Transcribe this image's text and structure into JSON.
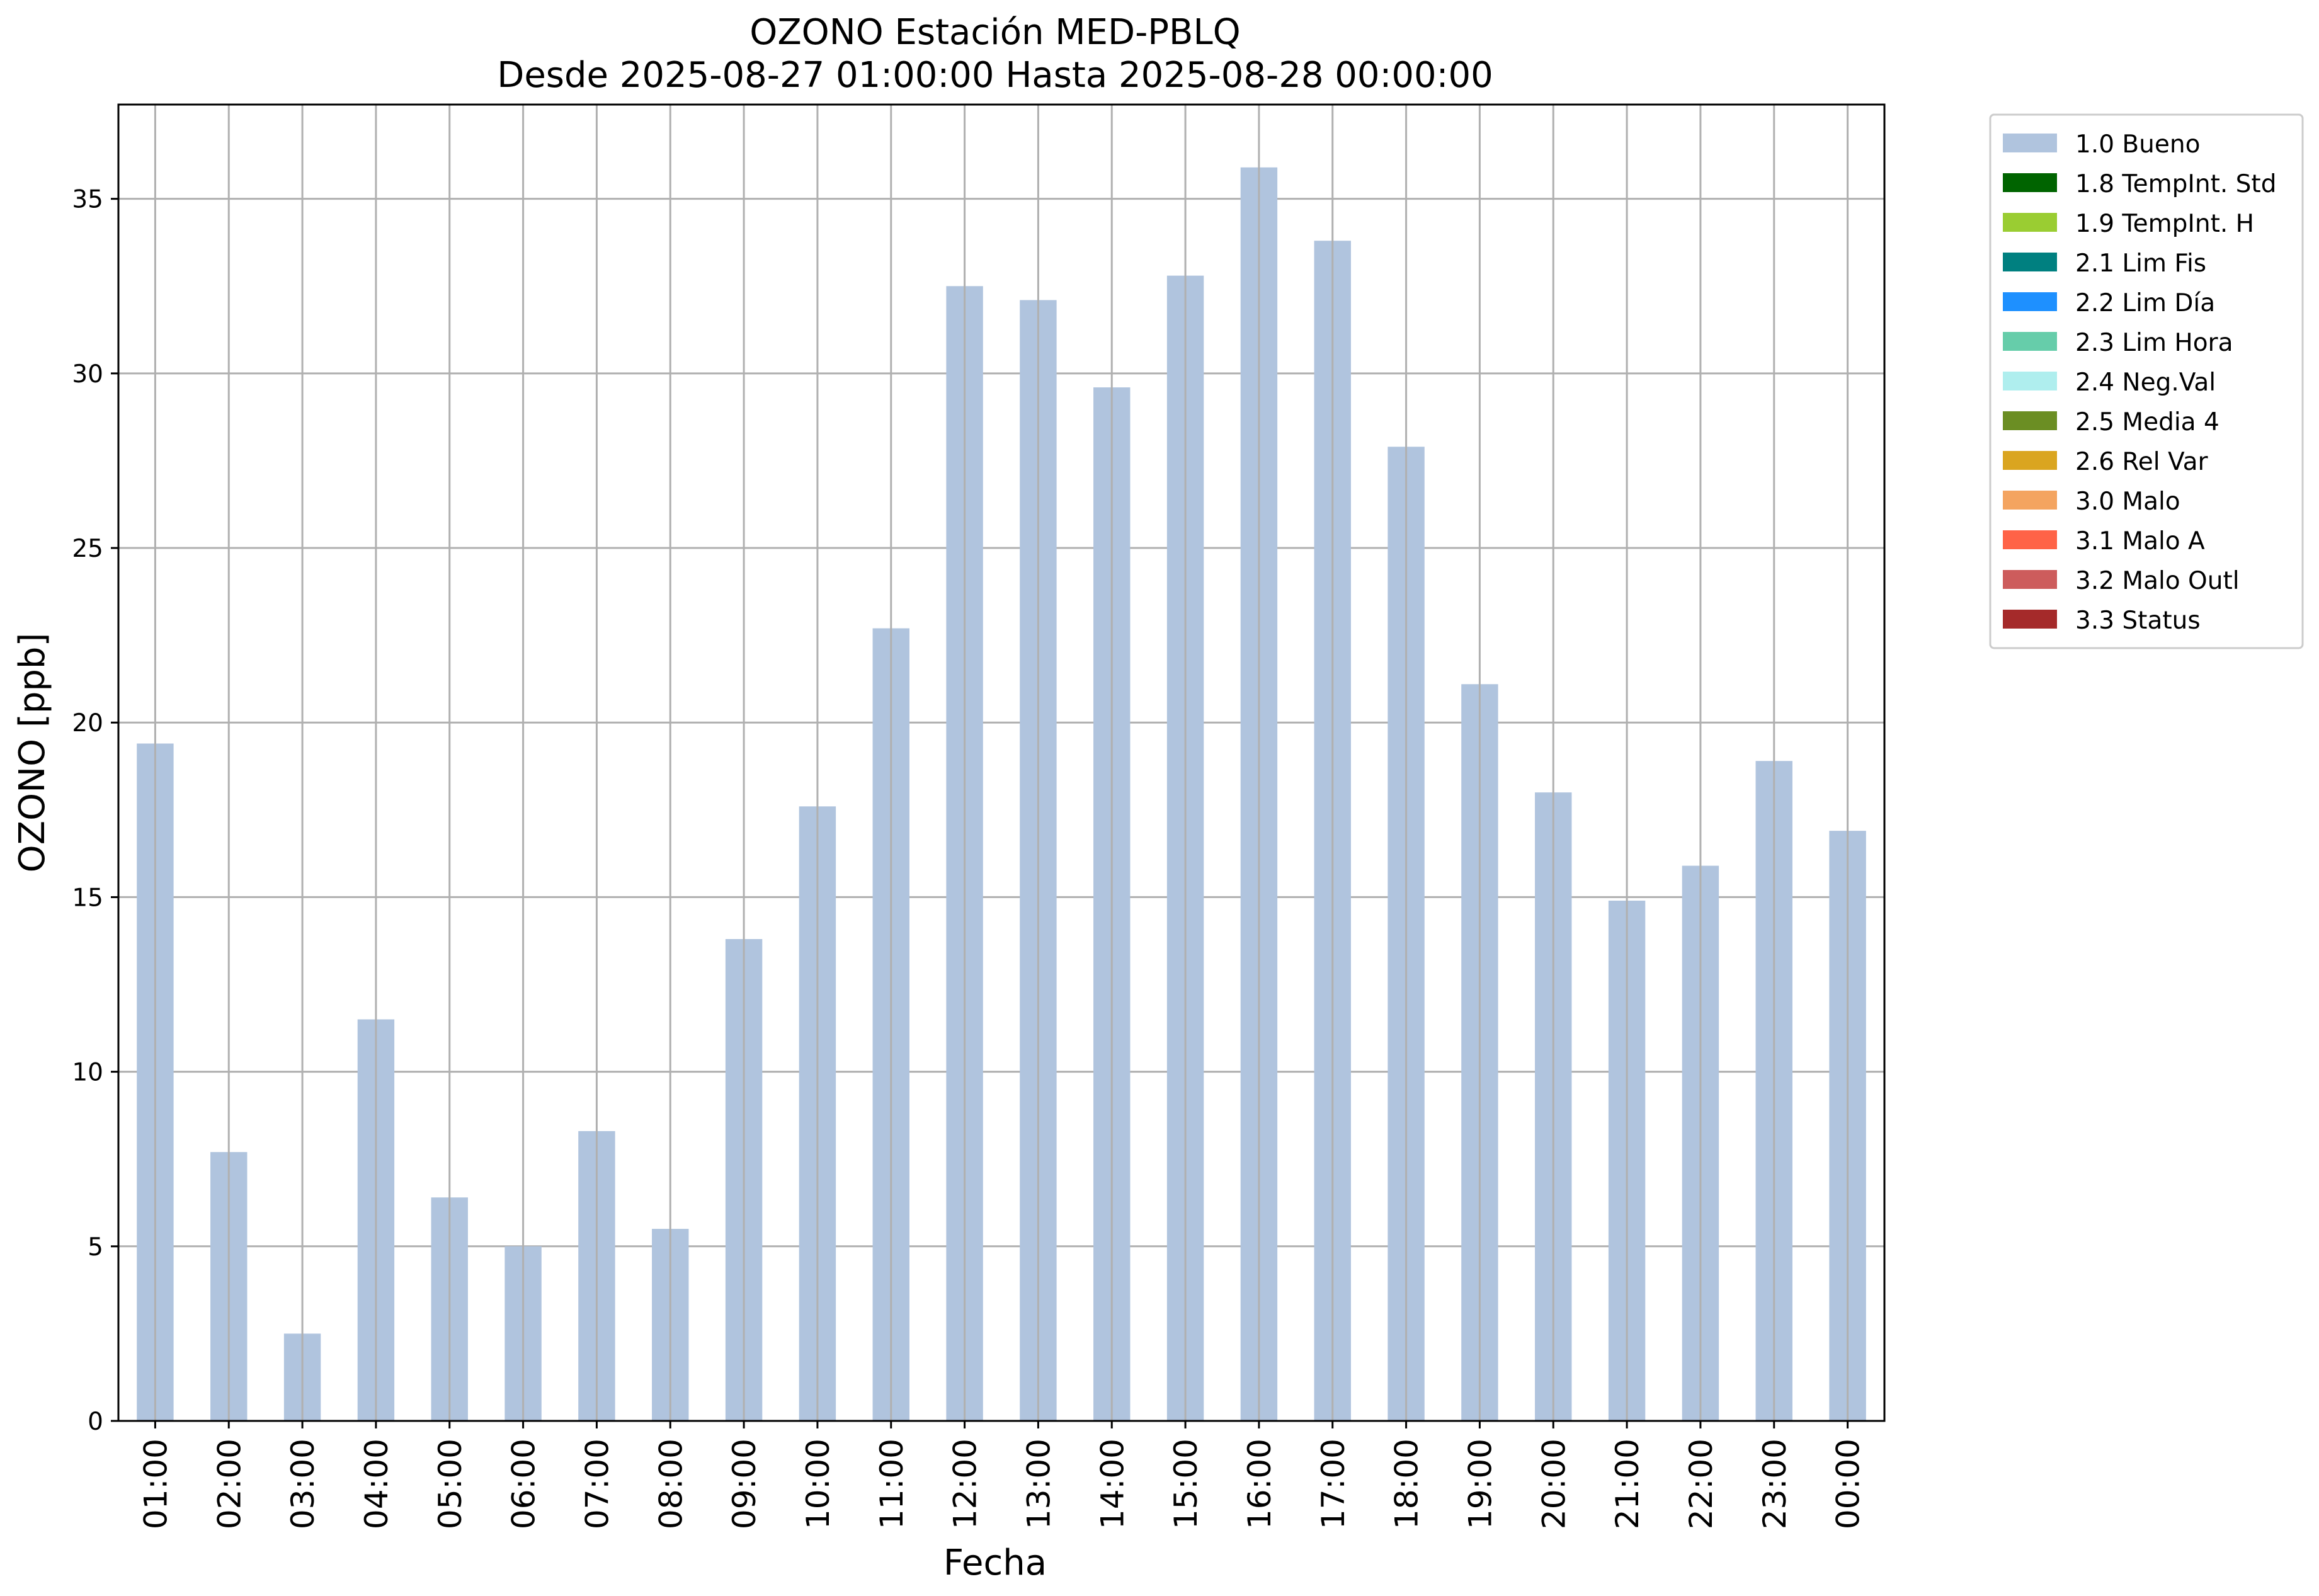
{
  "chart_data": {
    "type": "bar",
    "title": "OZONO Estación MED-PBLQ",
    "subtitle": "Desde 2025-08-27 01:00:00 Hasta 2025-08-28 00:00:00",
    "xlabel": "Fecha",
    "ylabel": "OZONO [ppb]",
    "ylim": [
      0,
      37.7
    ],
    "yticks": [
      0,
      5,
      10,
      15,
      20,
      25,
      30,
      35
    ],
    "grid": true,
    "legend_position": "outside-top-right",
    "categories": [
      "01:00",
      "02:00",
      "03:00",
      "04:00",
      "05:00",
      "06:00",
      "07:00",
      "08:00",
      "09:00",
      "10:00",
      "11:00",
      "12:00",
      "13:00",
      "14:00",
      "15:00",
      "16:00",
      "17:00",
      "18:00",
      "19:00",
      "20:00",
      "21:00",
      "22:00",
      "23:00",
      "00:00"
    ],
    "series": [
      {
        "name": "1.0 Bueno",
        "color": "#b0c4de",
        "values": [
          19.4,
          7.7,
          2.5,
          11.5,
          6.4,
          5.0,
          8.3,
          5.5,
          13.8,
          17.6,
          22.7,
          32.5,
          32.1,
          29.6,
          32.8,
          35.9,
          33.8,
          27.9,
          21.1,
          18.0,
          14.9,
          15.9,
          18.9,
          16.9
        ]
      }
    ],
    "legend": [
      {
        "label": "1.0 Bueno",
        "color": "#b0c4de"
      },
      {
        "label": "1.8 TempInt. Std",
        "color": "#006400"
      },
      {
        "label": "1.9 TempInt. H",
        "color": "#9acd32"
      },
      {
        "label": "2.1 Lim Fis",
        "color": "#008080"
      },
      {
        "label": "2.2 Lim Día",
        "color": "#1e90ff"
      },
      {
        "label": "2.3 Lim Hora",
        "color": "#66cdaa"
      },
      {
        "label": "2.4 Neg.Val",
        "color": "#afeeee"
      },
      {
        "label": "2.5 Media 4",
        "color": "#6b8e23"
      },
      {
        "label": "2.6 Rel Var",
        "color": "#daa520"
      },
      {
        "label": "3.0 Malo",
        "color": "#f4a460"
      },
      {
        "label": "3.1 Malo A",
        "color": "#ff6347"
      },
      {
        "label": "3.2 Malo Outl",
        "color": "#cd5c5c"
      },
      {
        "label": "3.3 Status",
        "color": "#a52a2a"
      }
    ]
  }
}
